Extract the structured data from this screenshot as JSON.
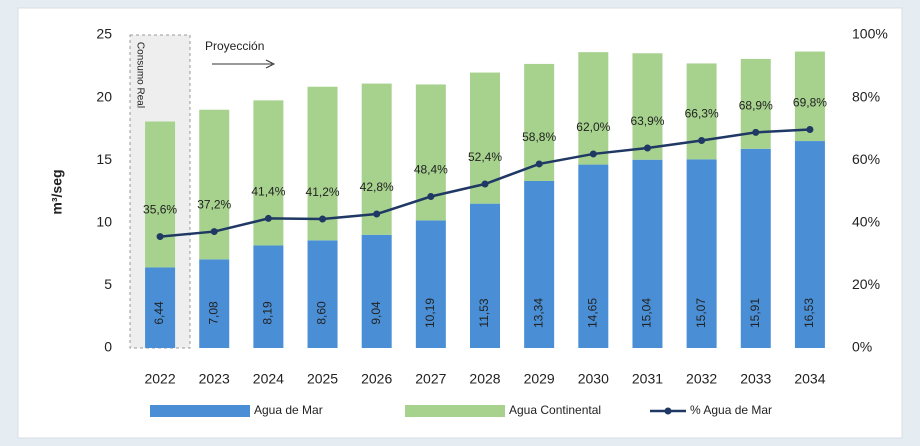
{
  "chart_data": {
    "type": "bar-line",
    "ylabel": "m³/seg",
    "annotations": [
      "Consumo Real",
      "Proyección"
    ],
    "categories": [
      "2022",
      "2023",
      "2024",
      "2025",
      "2026",
      "2027",
      "2028",
      "2029",
      "2030",
      "2031",
      "2032",
      "2033",
      "2034"
    ],
    "series": [
      {
        "name": "Agua de Mar",
        "color": "#4a8fd6",
        "values": [
          6.44,
          7.08,
          8.19,
          8.6,
          9.04,
          10.19,
          11.53,
          13.34,
          14.65,
          15.04,
          15.07,
          15.91,
          16.53
        ],
        "value_labels": [
          "6,44",
          "7,08",
          "8,19",
          "8,60",
          "9,04",
          "10,19",
          "11,53",
          "13,34",
          "14,65",
          "15,04",
          "15,07",
          "15,91",
          "16,53"
        ]
      },
      {
        "name": "Agua Continental",
        "color": "#a6d28e",
        "values": [
          11.65,
          11.95,
          11.59,
          12.27,
          12.08,
          10.86,
          10.47,
          9.35,
          8.98,
          8.5,
          7.66,
          7.18,
          7.15
        ]
      },
      {
        "name": "% Agua de Mar",
        "color": "#1f3864",
        "axis": "y2",
        "values": [
          35.6,
          37.2,
          41.4,
          41.2,
          42.8,
          48.4,
          52.4,
          58.8,
          62.0,
          63.9,
          66.3,
          68.9,
          69.8
        ],
        "value_labels": [
          "35,6%",
          "37,2%",
          "41,4%",
          "41,2%",
          "42,8%",
          "48,4%",
          "52,4%",
          "58,8%",
          "62,0%",
          "63,9%",
          "66,3%",
          "68,9%",
          "69,8%"
        ]
      }
    ],
    "ylim": [
      0,
      25
    ],
    "yticks": [
      0,
      5,
      10,
      15,
      20,
      25
    ],
    "y2lim": [
      0,
      100
    ],
    "y2ticks": [
      {
        "value": 0,
        "label": "0%"
      },
      {
        "value": 20,
        "label": "20%"
      },
      {
        "value": 40,
        "label": "40%"
      },
      {
        "value": 60,
        "label": "60%"
      },
      {
        "value": 80,
        "label": "80%"
      },
      {
        "value": 100,
        "label": "100%"
      }
    ]
  }
}
